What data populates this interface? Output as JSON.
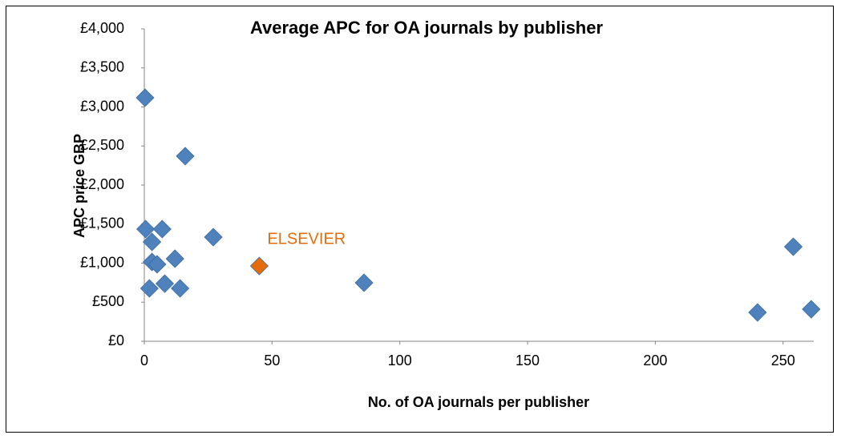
{
  "chart_data": {
    "type": "scatter",
    "title": "Average APC for OA journals by publisher",
    "x_label": "No. of OA journals per publisher",
    "y_label": "APC price GBP",
    "xlim": [
      0,
      262
    ],
    "xticks": [
      0,
      50,
      100,
      150,
      200,
      250
    ],
    "ylim": [
      0,
      4000
    ],
    "yticks": [
      {
        "value": 0,
        "label": "£0"
      },
      {
        "value": 500,
        "label": "£500"
      },
      {
        "value": 1000,
        "label": "£1,000"
      },
      {
        "value": 1500,
        "label": "£1,500"
      },
      {
        "value": 2000,
        "label": "£2,000"
      },
      {
        "value": 2500,
        "label": "£2,500"
      },
      {
        "value": 3000,
        "label": "£3,000"
      },
      {
        "value": 3500,
        "label": "£3,500"
      },
      {
        "value": 4000,
        "label": "£4,000"
      }
    ],
    "grid": false,
    "series": [
      {
        "color": "#4f81bd",
        "x": [
          0.3,
          16,
          0.5,
          7,
          3,
          27,
          3,
          5,
          12,
          2,
          8,
          14,
          86,
          240,
          254,
          261
        ],
        "values": [
          3118,
          2370,
          1436,
          1436,
          1272,
          1333,
          1015,
          985,
          1057,
          677,
          738,
          677,
          749,
          369,
          1210,
          410
        ]
      },
      {
        "color": "#e46c0a",
        "x": [
          45
        ],
        "values": [
          964
        ]
      }
    ],
    "annotations": [
      {
        "text": "ELSEVIER",
        "color": "#e46c0a",
        "series": 1,
        "point": 0
      }
    ]
  }
}
